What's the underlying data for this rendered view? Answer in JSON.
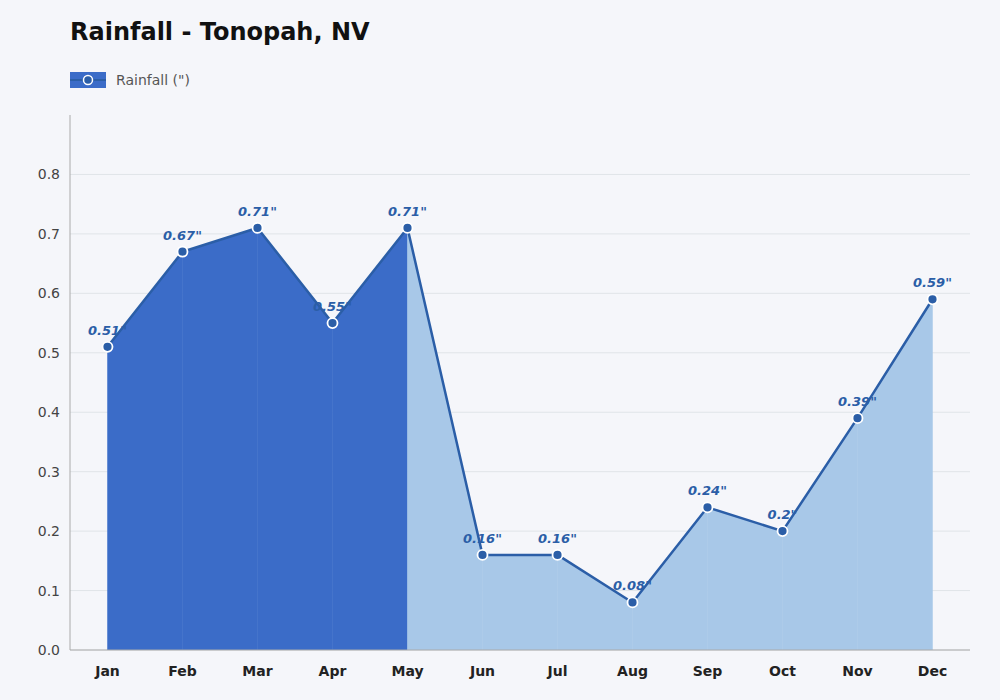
{
  "chart_data": {
    "type": "area",
    "title": "Rainfall - Tonopah, NV",
    "categories": [
      "Jan",
      "Feb",
      "Mar",
      "Apr",
      "May",
      "Jun",
      "Jul",
      "Aug",
      "Sep",
      "Oct",
      "Nov",
      "Dec"
    ],
    "series": [
      {
        "name": "Rainfall (\")",
        "color": "#2B5EA7",
        "colors": [
          "#3B6CC8",
          "#3B6CC8",
          "#3B6CC8",
          "#3B6CC8",
          "#3B6CC8",
          "#A8C8E8",
          "#A8C8E8",
          "#A8C8E8",
          "#A8C8E8",
          "#A8C8E8",
          "#A8C8E8",
          "#A8C8E8"
        ],
        "values": [
          0.51,
          0.67,
          0.71,
          0.55,
          0.71,
          0.16,
          0.16,
          0.08,
          0.24,
          0.2,
          0.39,
          0.59
        ],
        "value_labels": [
          "0.51\"",
          "0.67\"",
          "0.71\"",
          "0.55\"",
          "0.71\"",
          "0.16\"",
          "0.16\"",
          "0.08\"",
          "0.24\"",
          "0.2\"",
          "0.39\"",
          "0.59\""
        ]
      }
    ],
    "ylim": [
      0.0,
      0.9
    ],
    "yticks": [
      {
        "value": 0,
        "label": "0.0"
      },
      0.1,
      0.2,
      0.3,
      0.4,
      0.5,
      0.6,
      0.7,
      0.8
    ],
    "grid": true,
    "legend": "upper left",
    "data_labels": true,
    "marker": "circle"
  }
}
